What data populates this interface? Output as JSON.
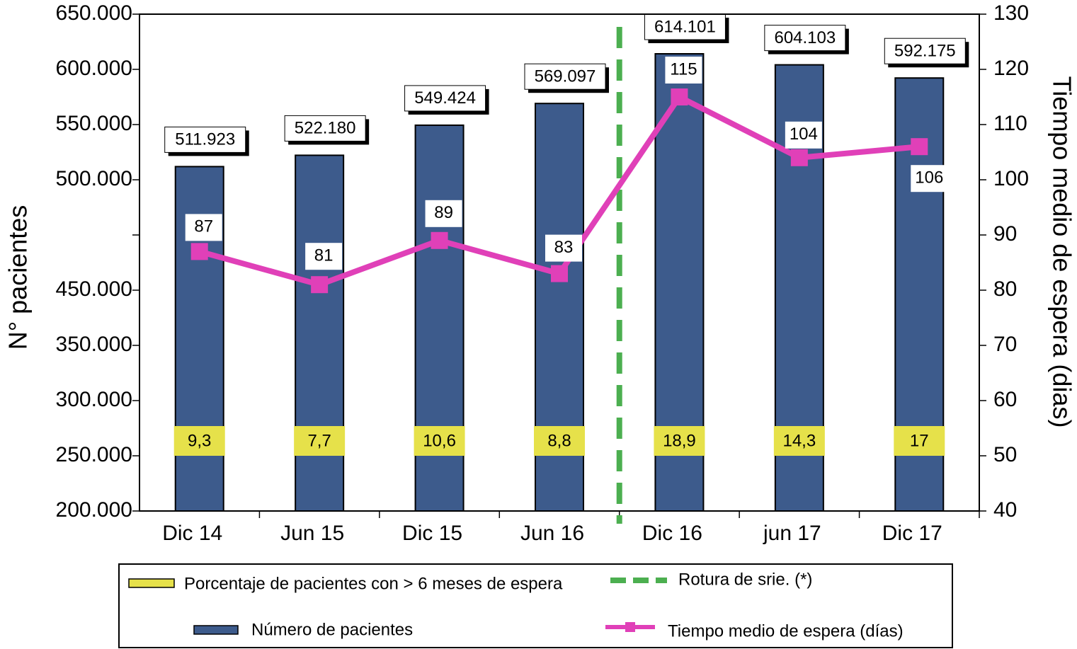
{
  "chart_data": {
    "type": "bar",
    "categories": [
      "Dic 14",
      "Jun 15",
      "Dic 15",
      "Jun 16",
      "Dic 16",
      "jun 17",
      "Dic 17"
    ],
    "y_label": "N° pacientes",
    "y2_label": "Tiempo medio de espera (dias)",
    "ylim": [
      200000,
      650000
    ],
    "yticks": [
      {
        "value": 200000,
        "label": "200.000"
      },
      {
        "value": 250000,
        "label": "250.000"
      },
      {
        "value": 300000,
        "label": "300.000"
      },
      {
        "value": 350000,
        "label": "350.000"
      },
      {
        "value": 450000,
        "label": "450.000"
      },
      null,
      {
        "value": 500000,
        "label": "500.000"
      },
      {
        "value": 550000,
        "label": "550.000"
      },
      {
        "value": 600000,
        "label": "600.000"
      },
      {
        "value": 650000,
        "label": "650.000"
      }
    ],
    "y2lim": [
      40,
      130
    ],
    "y2ticks": [
      40,
      50,
      60,
      70,
      80,
      90,
      100,
      110,
      120,
      130
    ],
    "series": [
      {
        "name": "Número de pacientes",
        "color": "#3d5b8c",
        "values": [
          511923,
          522180,
          549424,
          569097,
          614101,
          604103,
          592175
        ],
        "value_labels": [
          "511.923",
          "522.180",
          "549.424",
          "569.097",
          "614.101",
          "604.103",
          "592.175"
        ]
      },
      {
        "name": "Tiempo medio de espera (días)",
        "color": "#e040b8",
        "axis": "y2",
        "values": [
          87,
          81,
          89,
          83,
          115,
          104,
          106
        ]
      },
      {
        "name": "Porcentaje de pacientes con > 6 meses de espera",
        "color": "#e6e14a",
        "values": [
          9.3,
          7.7,
          10.6,
          8.8,
          18.9,
          14.3,
          17
        ],
        "value_labels": [
          "9,3",
          "7,7",
          "10,6",
          "8,8",
          "18,9",
          "14,3",
          "17"
        ]
      }
    ],
    "break_label": "Rotura de srie. (*)",
    "break_color": "#4caf50"
  }
}
